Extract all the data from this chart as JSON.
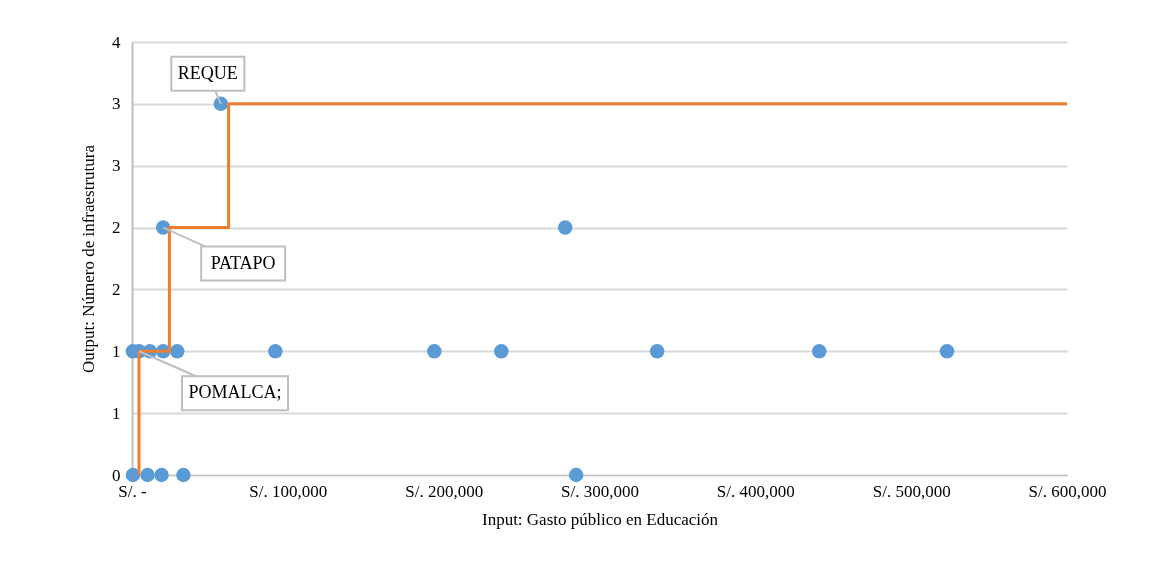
{
  "chart_data": {
    "type": "scatter",
    "xlabel": "Input: Gasto público en Educación",
    "ylabel": "Output: Número de infraestrutura",
    "xlim": [
      0,
      600000
    ],
    "xticks": [
      {
        "value": 0,
        "label": "S/. -"
      },
      {
        "value": 100000,
        "label": "S/. 100,000"
      },
      {
        "value": 200000,
        "label": "S/. 200,000"
      },
      {
        "value": 300000,
        "label": "S/. 300,000"
      },
      {
        "value": 400000,
        "label": "S/. 400,000"
      },
      {
        "value": 500000,
        "label": "S/. 500,000"
      },
      {
        "value": 600000,
        "label": "S/. 600,000"
      }
    ],
    "ylim": [
      0,
      3.5
    ],
    "yticks": [
      0,
      {
        "value": 0.5,
        "label": "1"
      },
      1,
      {
        "value": 1.5,
        "label": "2"
      },
      2,
      {
        "value": 2.5,
        "label": "3"
      },
      3,
      {
        "value": 3.5,
        "label": "4"
      }
    ],
    "grid": "y",
    "line_style": "solid",
    "series": [
      {
        "marker": "circle",
        "color": "#5b9bd5",
        "x": [
          600,
          10000,
          19000,
          33000,
          285000,
          600,
          4500,
          11500,
          20000,
          29000,
          92000,
          194000,
          237000,
          337000,
          441000,
          523000,
          20000,
          278000,
          57000
        ],
        "values": [
          0,
          0,
          0,
          0,
          0,
          1,
          1,
          1,
          1,
          1,
          1,
          1,
          1,
          1,
          1,
          1,
          2,
          2,
          3
        ]
      },
      {
        "type": "line",
        "color": "#ed7d31",
        "x": [
          4500,
          4500,
          24000,
          24000,
          62000,
          62000,
          600000
        ],
        "values": [
          0,
          1,
          1,
          2,
          2,
          3,
          3
        ]
      }
    ],
    "annotations": [
      {
        "text": "REQUE",
        "x": 57000,
        "y": 3
      },
      {
        "text": "PATAPO",
        "x": 20000,
        "y": 2
      },
      {
        "text": "POMALCA;",
        "x": 4500,
        "y": 1
      }
    ]
  }
}
